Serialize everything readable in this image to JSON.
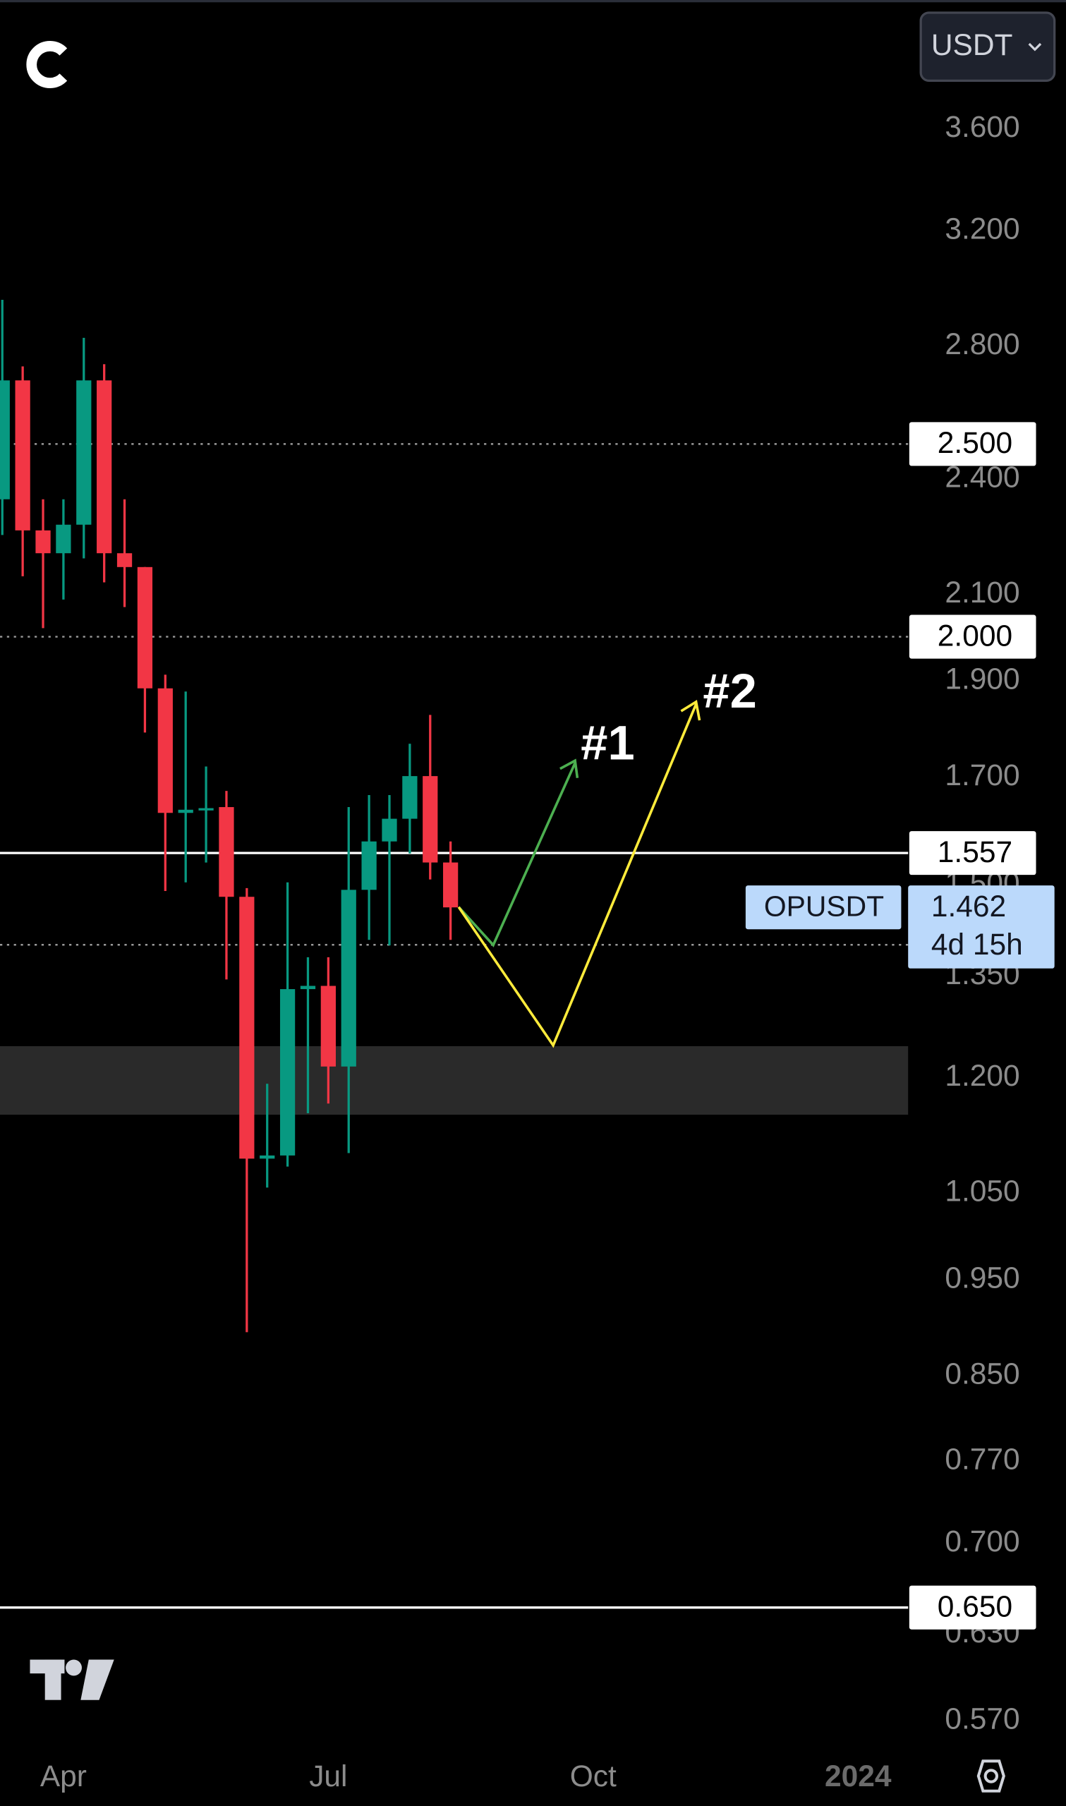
{
  "chart_data": {
    "type": "candlestick",
    "currency": "USDT",
    "symbol": "OPUSDT",
    "countdown": "4d 15h",
    "last_price": {
      "value": 1.462,
      "label": "1.462"
    },
    "log_scale": true,
    "up_color": "#089981",
    "down_color": "#f23645",
    "categories": [
      null,
      null,
      null,
      "Apr",
      null,
      null,
      null,
      null,
      null,
      null,
      null,
      null,
      null,
      null,
      null,
      null,
      "Jul",
      null,
      null,
      null,
      null,
      null,
      null,
      null,
      null,
      null,
      null,
      null,
      null,
      "Oct",
      null,
      null,
      null,
      null,
      null,
      null,
      null,
      null,
      null,
      null,
      null,
      null,
      "2024",
      null,
      null
    ],
    "open": [
      2.345,
      2.691,
      2.262,
      2.203,
      2.277,
      2.691,
      2.203,
      2.168,
      1.884,
      1.631,
      1.637,
      1.642,
      1.48,
      1.093,
      1.097,
      1.33,
      1.335,
      1.216,
      1.492,
      1.578,
      1.62,
      1.702,
      1.54,
      null,
      null,
      null,
      null,
      null,
      null,
      null,
      null,
      null,
      null,
      null,
      null,
      null,
      null,
      null,
      null,
      null,
      null,
      null,
      null,
      null,
      null
    ],
    "high": [
      2.954,
      2.735,
      2.345,
      2.345,
      2.827,
      2.742,
      2.345,
      2.168,
      1.914,
      1.877,
      1.721,
      1.673,
      1.495,
      1.192,
      1.505,
      1.38,
      1.38,
      1.642,
      1.665,
      1.665,
      1.767,
      1.827,
      1.578,
      null,
      null,
      null,
      null,
      null,
      null,
      null,
      null,
      null,
      null,
      null,
      null,
      null,
      null,
      null,
      null,
      null,
      null,
      null,
      null,
      null,
      null
    ],
    "low": [
      2.25,
      2.145,
      2.02,
      2.088,
      2.19,
      2.13,
      2.07,
      1.79,
      1.49,
      1.505,
      1.54,
      1.345,
      0.894,
      1.057,
      1.083,
      1.152,
      1.165,
      1.1,
      1.408,
      1.399,
      1.556,
      1.51,
      1.408,
      null,
      null,
      null,
      null,
      null,
      null,
      null,
      null,
      null,
      null,
      null,
      null,
      null,
      null,
      null,
      null,
      null,
      null,
      null,
      null,
      null,
      null
    ],
    "close": [
      2.691,
      2.262,
      2.203,
      2.277,
      2.691,
      2.203,
      2.168,
      1.884,
      1.631,
      1.637,
      1.64,
      1.48,
      1.093,
      1.097,
      1.33,
      1.335,
      1.216,
      1.492,
      1.578,
      1.62,
      1.702,
      1.54,
      1.462,
      null,
      null,
      null,
      null,
      null,
      null,
      null,
      null,
      null,
      null,
      null,
      null,
      null,
      null,
      null,
      null,
      null,
      null,
      null,
      null,
      null,
      null
    ],
    "ylim": [
      0.55,
      4.18
    ],
    "yticks": [
      {
        "value": 3.6,
        "label": "3.600"
      },
      {
        "value": 3.2,
        "label": "3.200"
      },
      {
        "value": 2.8,
        "label": "2.800"
      },
      {
        "value": 2.4,
        "label": "2.400"
      },
      {
        "value": 2.1,
        "label": "2.100"
      },
      {
        "value": 1.9,
        "label": "1.900"
      },
      {
        "value": 1.7,
        "label": "1.700"
      },
      {
        "value": 1.5,
        "label": "1.500"
      },
      {
        "value": 1.35,
        "label": "1.350"
      },
      {
        "value": 1.2,
        "label": "1.200"
      },
      {
        "value": 1.05,
        "label": "1.050"
      },
      {
        "value": 0.95,
        "label": "0.950"
      },
      {
        "value": 0.85,
        "label": "0.850"
      },
      {
        "value": 0.77,
        "label": "0.770"
      },
      {
        "value": 0.7,
        "label": "0.700"
      },
      {
        "value": 0.63,
        "label": "0.630"
      },
      {
        "value": 0.57,
        "label": "0.570"
      }
    ],
    "levels": [
      {
        "value": 2.5,
        "label": "2.500",
        "style": "dotted"
      },
      {
        "value": 2.0,
        "label": "2.000",
        "style": "dotted"
      },
      {
        "value": 1.557,
        "label": "1.557",
        "style": "solid"
      },
      {
        "value": 1.4,
        "style": "dotted"
      },
      {
        "value": 0.65,
        "label": "0.650",
        "style": "solid"
      }
    ],
    "zone": [
      1.15,
      1.245
    ],
    "annotations": [
      "#1",
      "#2"
    ]
  }
}
